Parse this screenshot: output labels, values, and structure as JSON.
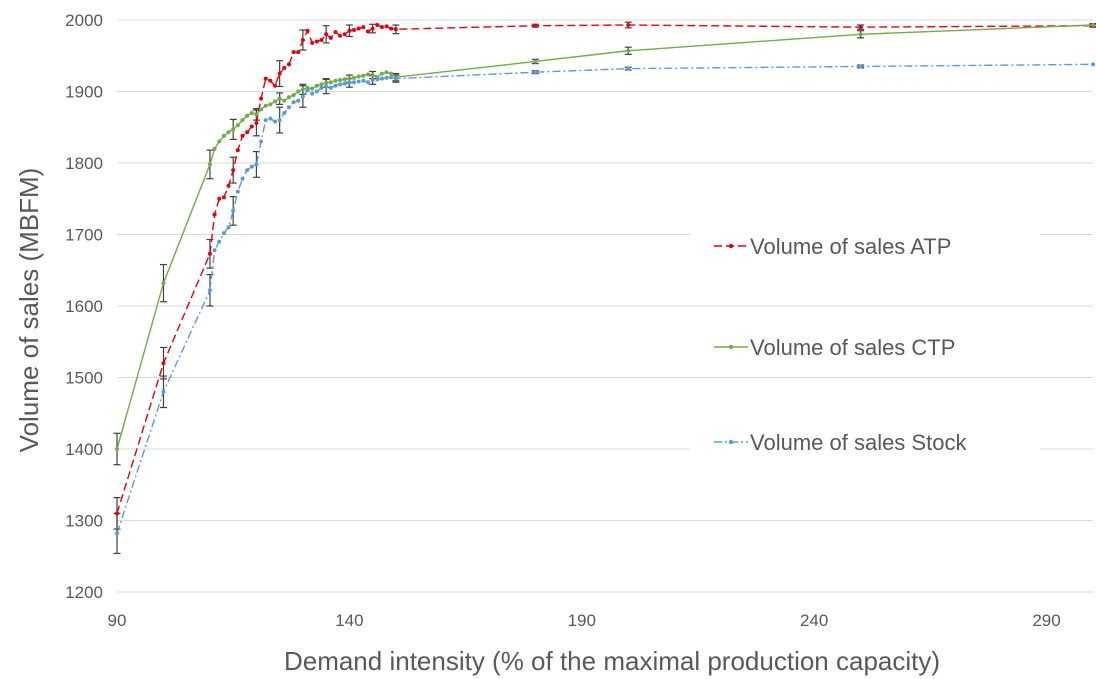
{
  "chart_data": {
    "type": "line",
    "title": "",
    "xlabel": "Demand intensity (% of the maximal production capacity)",
    "ylabel": "Volume of sales (MBFM)",
    "xlim": [
      90,
      300
    ],
    "ylim": [
      1200,
      2000
    ],
    "xticks": [
      90,
      140,
      190,
      240,
      290
    ],
    "yticks": [
      1200,
      1300,
      1400,
      1500,
      1600,
      1700,
      1800,
      1900,
      2000
    ],
    "grid": "horizontal",
    "legend_position": "right",
    "series": [
      {
        "name": "Volume of sales ATP",
        "color": "#e8000b",
        "line_style": "dashed",
        "x": [
          90,
          100,
          110,
          111,
          112,
          113,
          114,
          115,
          116,
          117,
          118,
          119,
          120,
          121,
          122,
          123,
          124,
          125,
          126,
          127,
          128,
          129,
          130,
          131,
          132,
          133,
          134,
          135,
          136,
          137,
          138,
          139,
          140,
          141,
          142,
          143,
          144,
          145,
          146,
          147,
          148,
          149,
          150,
          180,
          200,
          250,
          300
        ],
        "y": [
          1310,
          1520,
          1673,
          1728,
          1750,
          1752,
          1768,
          1790,
          1818,
          1838,
          1843,
          1851,
          1856,
          1890,
          1918,
          1915,
          1908,
          1925,
          1933,
          1938,
          1955,
          1955,
          1972,
          1985,
          1968,
          1970,
          1972,
          1980,
          1975,
          1983,
          1978,
          1980,
          1985,
          1986,
          1988,
          1990,
          1984,
          1988,
          1993,
          1990,
          1991,
          1988,
          1987,
          1992,
          1993,
          1990,
          1992
        ],
        "error": [
          22,
          22,
          20,
          0,
          0,
          0,
          0,
          18,
          0,
          0,
          0,
          0,
          18,
          0,
          0,
          0,
          0,
          18,
          0,
          0,
          0,
          0,
          14,
          0,
          0,
          0,
          0,
          12,
          0,
          0,
          0,
          0,
          8,
          0,
          0,
          0,
          0,
          6,
          0,
          0,
          0,
          0,
          6,
          2,
          4,
          3,
          2
        ]
      },
      {
        "name": "Volume of sales CTP",
        "color": "#70ad47",
        "line_style": "solid",
        "x": [
          90,
          100,
          110,
          111,
          112,
          113,
          114,
          115,
          116,
          117,
          118,
          119,
          120,
          121,
          122,
          123,
          124,
          125,
          126,
          127,
          128,
          129,
          130,
          131,
          132,
          133,
          134,
          135,
          136,
          137,
          138,
          139,
          140,
          141,
          142,
          143,
          144,
          145,
          146,
          147,
          148,
          149,
          150,
          180,
          200,
          250,
          300
        ],
        "y": [
          1400,
          1632,
          1798,
          1820,
          1830,
          1838,
          1843,
          1847,
          1853,
          1860,
          1866,
          1870,
          1868,
          1875,
          1880,
          1882,
          1886,
          1890,
          1887,
          1892,
          1895,
          1900,
          1903,
          1905,
          1904,
          1908,
          1910,
          1912,
          1913,
          1915,
          1916,
          1917,
          1918,
          1919,
          1921,
          1922,
          1924,
          1923,
          1920,
          1925,
          1927,
          1925,
          1920,
          1942,
          1957,
          1980,
          1993
        ],
        "error": [
          22,
          26,
          20,
          0,
          0,
          0,
          0,
          14,
          0,
          0,
          0,
          0,
          8,
          0,
          0,
          0,
          0,
          8,
          0,
          0,
          0,
          0,
          7,
          0,
          0,
          0,
          0,
          6,
          0,
          0,
          0,
          0,
          5,
          0,
          0,
          0,
          0,
          5,
          0,
          0,
          0,
          0,
          5,
          3,
          5,
          5,
          2
        ]
      },
      {
        "name": "Volume of sales Stock",
        "color": "#5b9bd5",
        "line_style": "dash-dot",
        "x": [
          90,
          100,
          110,
          111,
          112,
          113,
          114,
          115,
          116,
          117,
          118,
          119,
          120,
          121,
          122,
          123,
          124,
          125,
          126,
          127,
          128,
          129,
          130,
          131,
          132,
          133,
          134,
          135,
          136,
          137,
          138,
          139,
          140,
          141,
          142,
          143,
          144,
          145,
          146,
          147,
          148,
          149,
          150,
          180,
          200,
          250,
          300
        ],
        "y": [
          1282,
          1480,
          1622,
          1678,
          1690,
          1702,
          1710,
          1733,
          1760,
          1778,
          1790,
          1795,
          1798,
          1830,
          1860,
          1862,
          1858,
          1860,
          1870,
          1878,
          1885,
          1887,
          1893,
          1902,
          1897,
          1900,
          1905,
          1907,
          1905,
          1908,
          1910,
          1911,
          1912,
          1913,
          1914,
          1915,
          1913,
          1916,
          1917,
          1918,
          1919,
          1920,
          1918,
          1927,
          1932,
          1935,
          1938
        ],
        "error": [
          28,
          22,
          22,
          0,
          0,
          0,
          0,
          20,
          0,
          0,
          0,
          0,
          18,
          0,
          0,
          0,
          0,
          18,
          0,
          0,
          0,
          0,
          15,
          0,
          0,
          0,
          0,
          10,
          0,
          0,
          0,
          0,
          6,
          0,
          0,
          0,
          0,
          6,
          0,
          0,
          0,
          0,
          5,
          2,
          2,
          2,
          0
        ]
      }
    ]
  }
}
